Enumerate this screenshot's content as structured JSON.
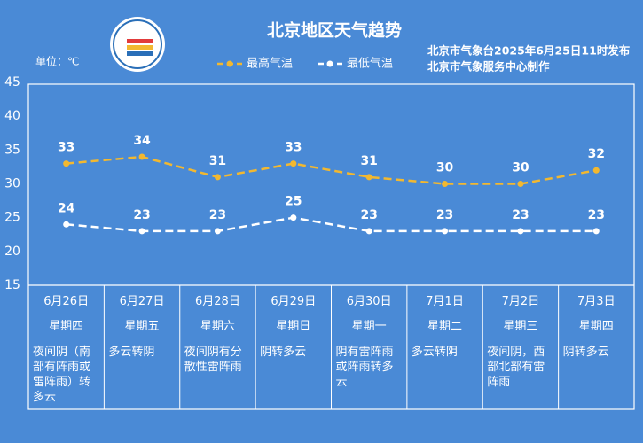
{
  "chart_data": {
    "type": "line",
    "title": "北京地区天气趋势",
    "unit": "单位：℃",
    "publisher": [
      "北京市气象台2025年6月25日11时发布",
      "北京市气象服务中心制作"
    ],
    "categories": [
      "6月26日",
      "6月27日",
      "6月28日",
      "6月29日",
      "6月30日",
      "7月1日",
      "7月2日",
      "7月3日"
    ],
    "weekdays": [
      "星期四",
      "星期五",
      "星期六",
      "星期日",
      "星期一",
      "星期二",
      "星期三",
      "星期四"
    ],
    "descriptions": [
      "夜间阴（南部有阵雨或雷阵雨）转多云",
      "多云转阴",
      "夜间阴有分散性雷阵雨",
      "阴转多云",
      "阴有雷阵雨或阵雨转多云",
      "多云转阴",
      "夜间阴，西部北部有雷阵雨",
      "阴转多云"
    ],
    "series": [
      {
        "name": "最高气温",
        "color": "#f2b830",
        "values": [
          33,
          34,
          31,
          33,
          31,
          30,
          30,
          32
        ]
      },
      {
        "name": "最低气温",
        "color": "#ffffff",
        "values": [
          24,
          23,
          23,
          25,
          23,
          23,
          23,
          23
        ]
      }
    ],
    "ylim": [
      15,
      45
    ],
    "yticks": [
      15,
      20,
      25,
      30,
      35,
      40,
      45
    ]
  }
}
